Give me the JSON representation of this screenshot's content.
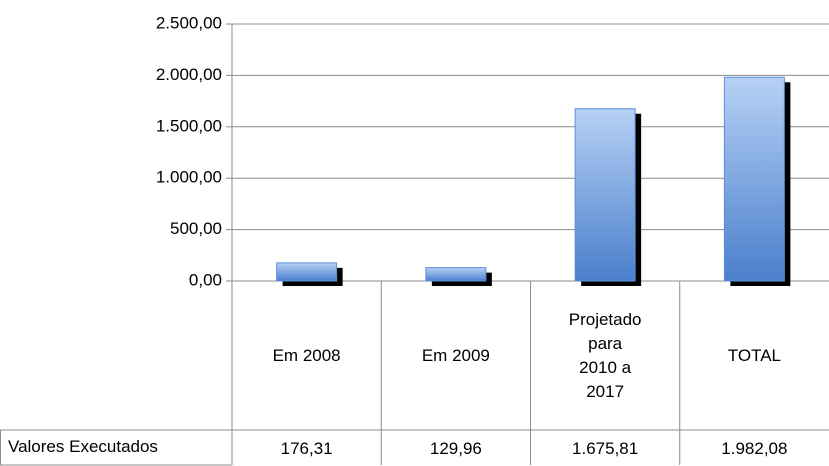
{
  "chart_data": {
    "type": "bar",
    "categories": [
      "Em 2008",
      "Em 2009",
      "Projetado para 2010 a 2017",
      "TOTAL"
    ],
    "series": [
      {
        "name": "Valores Executados",
        "color": "#5b8fd6",
        "values": [
          176.31,
          129.96,
          1675.81,
          1982.08
        ],
        "value_labels": [
          "176,31",
          "129,96",
          "1.675,81",
          "1.982,08"
        ]
      }
    ],
    "ylim": [
      0,
      2500
    ],
    "yticks": [
      {
        "value": 0,
        "label": "0,00"
      },
      {
        "value": 500,
        "label": "500,00"
      },
      {
        "value": 1000,
        "label": "1.000,00"
      },
      {
        "value": 1500,
        "label": "1.500,00"
      },
      {
        "value": 2000,
        "label": "2.000,00"
      },
      {
        "value": 2500,
        "label": "2.500,00"
      }
    ],
    "grid": true,
    "data_table": true
  }
}
